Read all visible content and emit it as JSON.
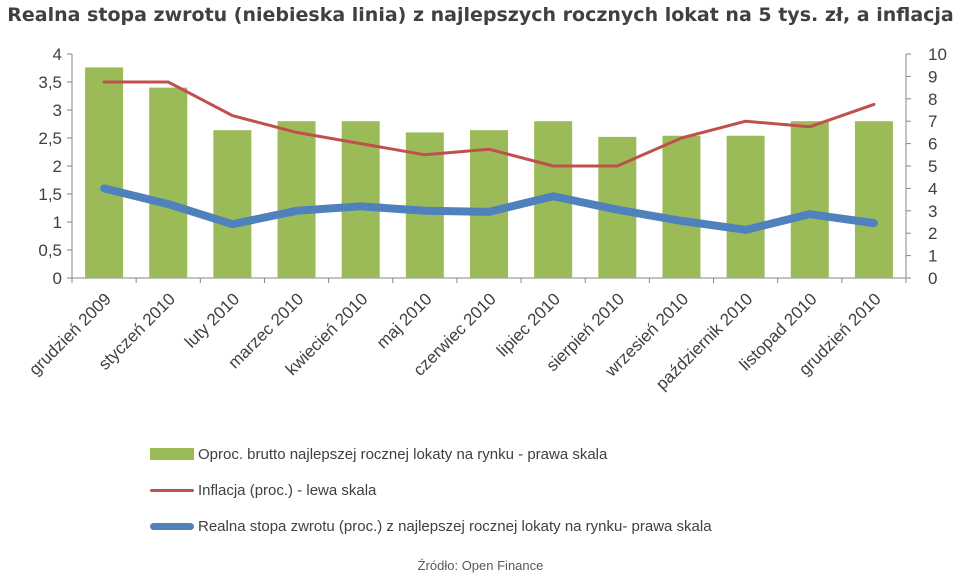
{
  "title": "Realna stopa zwrotu (niebieska linia) z najlepszych rocznych lokat na 5 tys. zł, a inflacja",
  "source": "Źródło: Open Finance",
  "colors": {
    "bars": "#9bbb59",
    "inflation": "#c0504d",
    "real_rate": "#4f81bd",
    "text": "#404040"
  },
  "chart_data": {
    "type": "bar",
    "categories": [
      "grudzień 2009",
      "styczeń 2010",
      "luty 2010",
      "marzec 2010",
      "kwiecień 2010",
      "maj 2010",
      "czerwiec 2010",
      "lipiec 2010",
      "sierpień 2010",
      "wrzesień 2010",
      "październik 2010",
      "listopad 2010",
      "grudzień 2010"
    ],
    "left_axis": {
      "min": 0,
      "max": 4,
      "step": 0.5,
      "tick_labels": [
        "0",
        "0,5",
        "1",
        "1,5",
        "2",
        "2,5",
        "3",
        "3,5",
        "4"
      ]
    },
    "right_axis": {
      "min": 0,
      "max": 10,
      "step": 1,
      "tick_labels": [
        "0",
        "1",
        "2",
        "3",
        "4",
        "5",
        "6",
        "7",
        "8",
        "9",
        "10"
      ]
    },
    "grid": false,
    "legend_position": "bottom",
    "series": [
      {
        "name": "Oproc. brutto najlepszej rocznej lokaty na rynku - prawa skala",
        "type": "bar",
        "axis": "right",
        "values": [
          9.4,
          8.5,
          6.6,
          7.0,
          7.0,
          6.5,
          6.6,
          7.0,
          6.3,
          6.35,
          6.35,
          7.0,
          7.0
        ]
      },
      {
        "name": "Inflacja (proc.) - lewa skala",
        "type": "line",
        "axis": "left",
        "values": [
          3.5,
          3.5,
          2.9,
          2.6,
          2.4,
          2.2,
          2.3,
          2.0,
          2.0,
          2.5,
          2.8,
          2.7,
          3.1
        ]
      },
      {
        "name": "Realna stopa zwrotu (proc.) z najlepszej rocznej lokaty na rynku- prawa skala",
        "type": "line",
        "axis": "right",
        "values": [
          4.0,
          3.3,
          2.4,
          3.0,
          3.2,
          3.0,
          2.95,
          3.65,
          3.05,
          2.55,
          2.15,
          2.85,
          2.45
        ]
      }
    ]
  }
}
